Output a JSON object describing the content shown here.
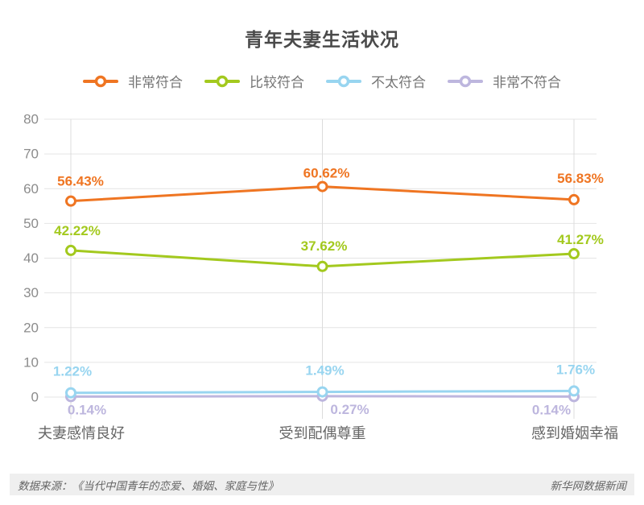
{
  "title": "青年夫妻生活状况",
  "chart_data": {
    "type": "line",
    "categories": [
      "夫妻感情良好",
      "受到配偶尊重",
      "感到婚姻幸福"
    ],
    "series": [
      {
        "name": "非常符合",
        "color": "#EF7522",
        "values": [
          56.43,
          60.62,
          56.83
        ],
        "value_labels": [
          "56.43%",
          "60.62%",
          "56.83%"
        ]
      },
      {
        "name": "比较符合",
        "color": "#A3C91E",
        "values": [
          42.22,
          37.62,
          41.27
        ],
        "value_labels": [
          "42.22%",
          "37.62%",
          "41.27%"
        ]
      },
      {
        "name": "不太符合",
        "color": "#98D5F0",
        "values": [
          1.22,
          1.49,
          1.76
        ],
        "value_labels": [
          "1.22%",
          "1.49%",
          "1.76%"
        ]
      },
      {
        "name": "非常不符合",
        "color": "#BDB6DE",
        "values": [
          0.14,
          0.27,
          0.14
        ],
        "value_labels": [
          "0.14%",
          "0.27%",
          "0.14%"
        ]
      }
    ],
    "ylim": [
      0,
      80
    ],
    "yticks": [
      0,
      10,
      20,
      30,
      40,
      50,
      60,
      70,
      80
    ],
    "grid": true,
    "legend_position": "top",
    "xlabel": "",
    "ylabel": ""
  },
  "footer": {
    "source": "数据来源：《当代中国青年的恋爱、婚姻、家庭与性》",
    "credit": "新华网数据新闻"
  }
}
